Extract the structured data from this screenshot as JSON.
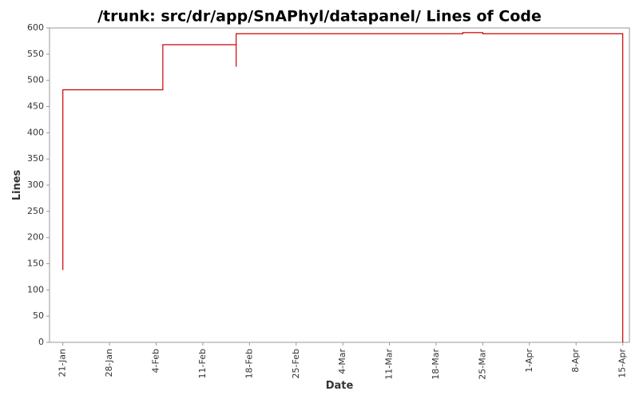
{
  "chart_data": {
    "type": "line",
    "step": true,
    "title": "/trunk: src/dr/app/SnAPhyl/datapanel/ Lines of Code",
    "x_label": "Date",
    "y_label": "Lines",
    "series": [
      {
        "name": "Lines of Code",
        "color": "#cc0000",
        "x": [
          "21-Jan",
          "21-Jan",
          "5-Feb",
          "16-Feb",
          "16-Feb",
          "22-Mar",
          "25-Mar",
          "15-Apr",
          "15-Apr"
        ],
        "values": [
          138,
          482,
          568,
          526,
          589,
          591,
          589,
          589,
          0
        ]
      }
    ],
    "xlim": [
      "19-Jan",
      "16-Apr"
    ],
    "xticks": [
      "21-Jan",
      "28-Jan",
      "4-Feb",
      "11-Feb",
      "18-Feb",
      "25-Feb",
      "4-Mar",
      "11-Mar",
      "18-Mar",
      "25-Mar",
      "1-Apr",
      "8-Apr",
      "15-Apr"
    ],
    "ylim": [
      0,
      600
    ],
    "yticks": [
      0,
      50,
      100,
      150,
      200,
      250,
      300,
      350,
      400,
      450,
      500,
      550,
      600
    ],
    "grid": false
  }
}
